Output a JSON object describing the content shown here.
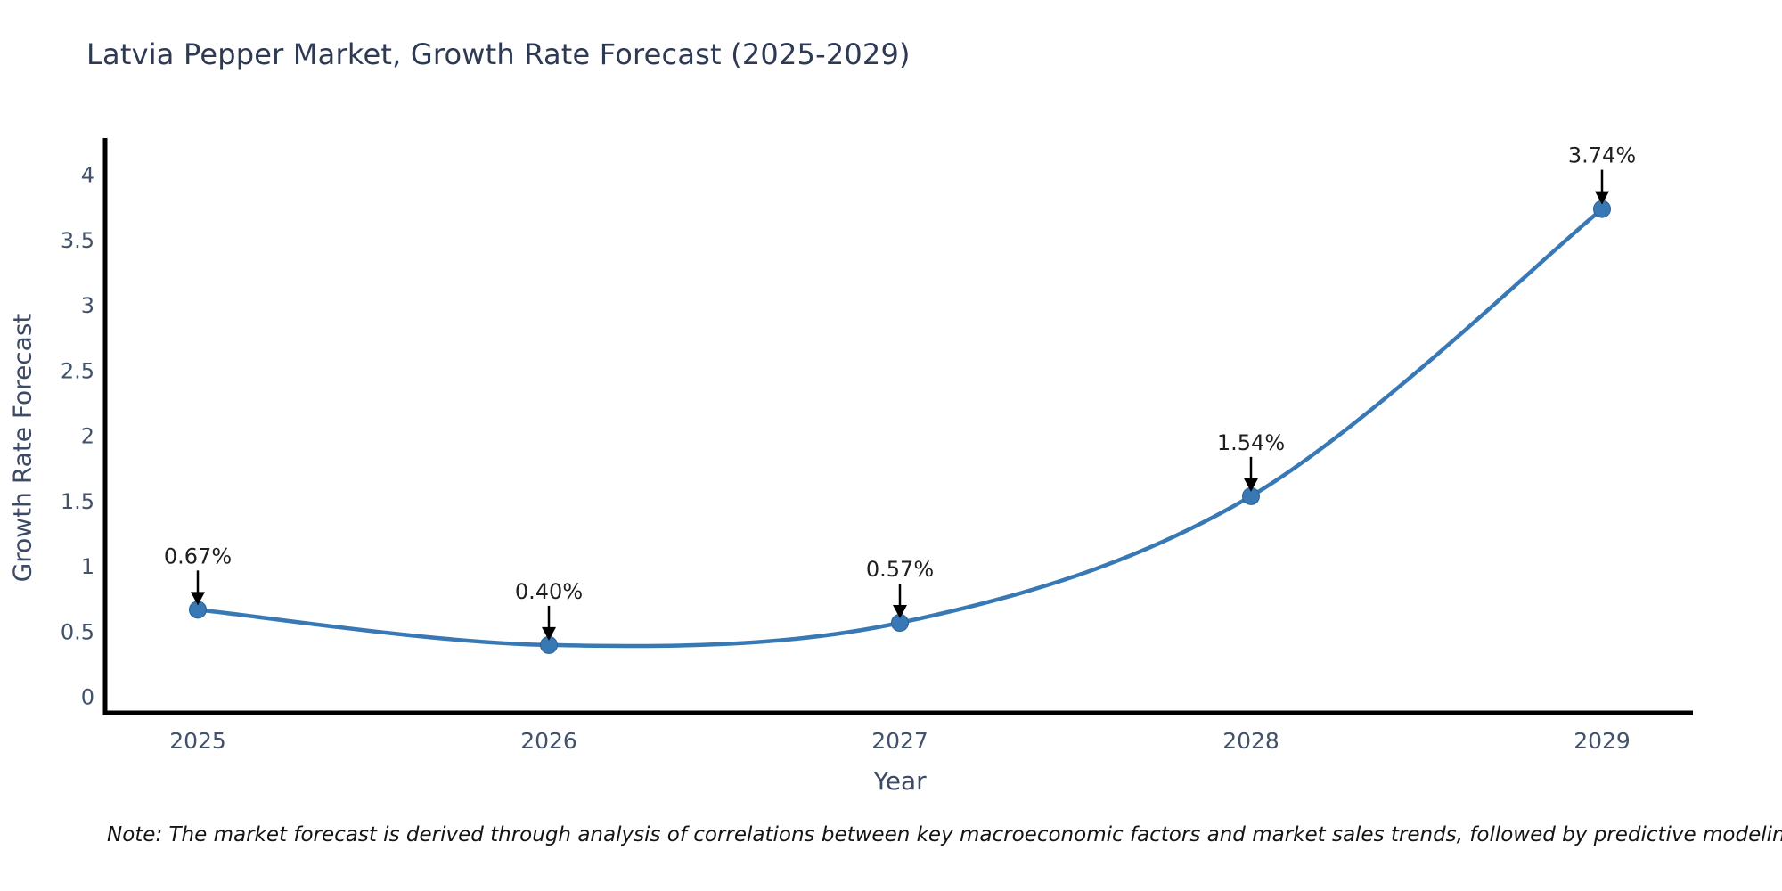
{
  "title": "Latvia Pepper Market, Growth Rate Forecast (2025-2029)",
  "note": "Note: The market forecast is derived through analysis of correlations between key macroeconomic factors and market sales trends, followed by predictive modeling to project future sales",
  "chart_data": {
    "type": "line",
    "title": "Latvia Pepper Market, Growth Rate Forecast (2025-2029)",
    "xlabel": "Year",
    "ylabel": "Growth Rate Forecast",
    "x": [
      2025,
      2026,
      2027,
      2028,
      2029
    ],
    "series": [
      {
        "name": "Growth Rate Forecast",
        "values": [
          0.67,
          0.4,
          0.57,
          1.54,
          3.74
        ]
      }
    ],
    "point_labels": [
      "0.67%",
      "0.40%",
      "0.57%",
      "1.54%",
      "3.74%"
    ],
    "x_tick_labels": [
      "2025",
      "2026",
      "2027",
      "2028",
      "2029"
    ],
    "y_ticks": [
      0,
      0.5,
      1,
      1.5,
      2,
      2.5,
      3,
      3.5,
      4
    ],
    "ylim": [
      -0.12,
      4.3
    ],
    "grid": false,
    "legend": "none",
    "smooth_curve": true,
    "line_color": "#3879b5",
    "marker_color": "#3879b5",
    "axis_color": "#000000",
    "tick_label_color": "#42526b",
    "title_color": "#2e3a54",
    "annotation_color": "#1f1f1f",
    "annotation_arrow_color": "#000000"
  }
}
